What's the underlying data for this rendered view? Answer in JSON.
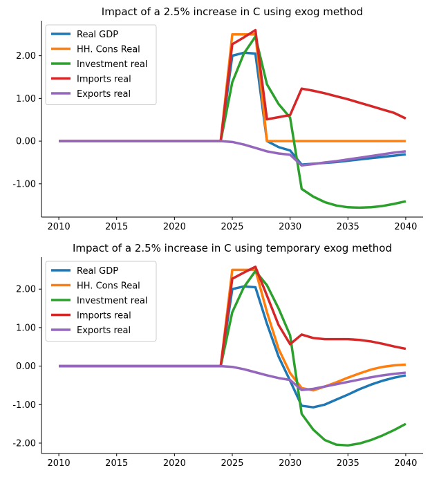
{
  "chart_data": [
    {
      "type": "line",
      "title": "Impact of a 2.5% increase in C using exog method",
      "xlabel": "",
      "ylabel": "",
      "xlim": [
        2008.5,
        2041.5
      ],
      "ylim": [
        -1.78,
        2.82
      ],
      "xticks": [
        2010,
        2015,
        2020,
        2025,
        2030,
        2035,
        2040
      ],
      "xtick_labels": [
        "2010",
        "2015",
        "2020",
        "2025",
        "2030",
        "2035",
        "2040"
      ],
      "yticks": [
        -1,
        0,
        1,
        2
      ],
      "ytick_labels": [
        "-1.00",
        "0.00",
        "1.00",
        "2.00"
      ],
      "legend_position": "upper-left",
      "grid": false,
      "x": [
        2010,
        2011,
        2012,
        2013,
        2014,
        2015,
        2016,
        2017,
        2018,
        2019,
        2020,
        2021,
        2022,
        2023,
        2024,
        2025,
        2026,
        2027,
        2028,
        2029,
        2030,
        2031,
        2032,
        2033,
        2034,
        2035,
        2036,
        2037,
        2038,
        2039,
        2040
      ],
      "series": [
        {
          "name": "Real GDP",
          "color": "#1f77b4",
          "values": [
            0,
            0,
            0,
            0,
            0,
            0,
            0,
            0,
            0,
            0,
            0,
            0,
            0,
            0,
            0,
            2.0,
            2.07,
            2.05,
            0.0,
            -0.14,
            -0.22,
            -0.55,
            -0.53,
            -0.51,
            -0.49,
            -0.46,
            -0.43,
            -0.4,
            -0.37,
            -0.34,
            -0.31
          ]
        },
        {
          "name": "HH. Cons Real",
          "color": "#ff7f0e",
          "values": [
            0,
            0,
            0,
            0,
            0,
            0,
            0,
            0,
            0,
            0,
            0,
            0,
            0,
            0,
            0,
            2.5,
            2.5,
            2.5,
            0,
            0,
            0,
            0,
            0,
            0,
            0,
            0,
            0,
            0,
            0,
            0,
            0
          ]
        },
        {
          "name": "Investment real",
          "color": "#2ca02c",
          "values": [
            0,
            0,
            0,
            0,
            0,
            0,
            0,
            0,
            0,
            0,
            0,
            0,
            0,
            0,
            0,
            1.38,
            2.05,
            2.45,
            1.33,
            0.87,
            0.55,
            -1.12,
            -1.3,
            -1.43,
            -1.51,
            -1.55,
            -1.56,
            -1.55,
            -1.52,
            -1.47,
            -1.41
          ]
        },
        {
          "name": "Imports real",
          "color": "#d62728",
          "values": [
            0,
            0,
            0,
            0,
            0,
            0,
            0,
            0,
            0,
            0,
            0,
            0,
            0,
            0,
            0,
            2.27,
            2.43,
            2.6,
            0.51,
            0.56,
            0.61,
            1.23,
            1.18,
            1.12,
            1.05,
            0.98,
            0.9,
            0.82,
            0.74,
            0.66,
            0.53
          ]
        },
        {
          "name": "Exports real",
          "color": "#9467bd",
          "values": [
            0,
            0,
            0,
            0,
            0,
            0,
            0,
            0,
            0,
            0,
            0,
            0,
            0,
            0,
            0,
            -0.02,
            -0.08,
            -0.16,
            -0.24,
            -0.29,
            -0.32,
            -0.57,
            -0.54,
            -0.5,
            -0.47,
            -0.43,
            -0.39,
            -0.35,
            -0.31,
            -0.27,
            -0.24
          ]
        }
      ]
    },
    {
      "type": "line",
      "title": "Impact of a 2.5% increase in C using temporary exog method",
      "xlabel": "",
      "ylabel": "",
      "xlim": [
        2008.5,
        2041.5
      ],
      "ylim": [
        -2.27,
        2.83
      ],
      "xticks": [
        2010,
        2015,
        2020,
        2025,
        2030,
        2035,
        2040
      ],
      "xtick_labels": [
        "2010",
        "2015",
        "2020",
        "2025",
        "2030",
        "2035",
        "2040"
      ],
      "yticks": [
        -2,
        -1,
        0,
        1,
        2
      ],
      "ytick_labels": [
        "-2.00",
        "-1.00",
        "0.00",
        "1.00",
        "2.00"
      ],
      "legend_position": "upper-left",
      "grid": false,
      "x": [
        2010,
        2011,
        2012,
        2013,
        2014,
        2015,
        2016,
        2017,
        2018,
        2019,
        2020,
        2021,
        2022,
        2023,
        2024,
        2025,
        2026,
        2027,
        2028,
        2029,
        2030,
        2031,
        2032,
        2033,
        2034,
        2035,
        2036,
        2037,
        2038,
        2039,
        2040
      ],
      "series": [
        {
          "name": "Real GDP",
          "color": "#1f77b4",
          "values": [
            0,
            0,
            0,
            0,
            0,
            0,
            0,
            0,
            0,
            0,
            0,
            0,
            0,
            0,
            0,
            2.0,
            2.07,
            2.05,
            1.1,
            0.25,
            -0.38,
            -1.03,
            -1.07,
            -1.0,
            -0.87,
            -0.74,
            -0.6,
            -0.48,
            -0.38,
            -0.3,
            -0.24
          ]
        },
        {
          "name": "HH. Cons Real",
          "color": "#ff7f0e",
          "values": [
            0,
            0,
            0,
            0,
            0,
            0,
            0,
            0,
            0,
            0,
            0,
            0,
            0,
            0,
            0,
            2.5,
            2.5,
            2.5,
            1.4,
            0.45,
            -0.18,
            -0.57,
            -0.63,
            -0.53,
            -0.42,
            -0.3,
            -0.19,
            -0.09,
            -0.02,
            0.02,
            0.04
          ]
        },
        {
          "name": "Investment real",
          "color": "#2ca02c",
          "values": [
            0,
            0,
            0,
            0,
            0,
            0,
            0,
            0,
            0,
            0,
            0,
            0,
            0,
            0,
            0,
            1.4,
            2.05,
            2.47,
            2.1,
            1.5,
            0.8,
            -1.24,
            -1.65,
            -1.92,
            -2.04,
            -2.06,
            -2.01,
            -1.92,
            -1.8,
            -1.66,
            -1.5
          ]
        },
        {
          "name": "Imports real",
          "color": "#d62728",
          "values": [
            0,
            0,
            0,
            0,
            0,
            0,
            0,
            0,
            0,
            0,
            0,
            0,
            0,
            0,
            0,
            2.27,
            2.43,
            2.58,
            1.83,
            1.07,
            0.57,
            0.82,
            0.73,
            0.7,
            0.7,
            0.7,
            0.68,
            0.64,
            0.58,
            0.51,
            0.45
          ]
        },
        {
          "name": "Exports real",
          "color": "#9467bd",
          "values": [
            0,
            0,
            0,
            0,
            0,
            0,
            0,
            0,
            0,
            0,
            0,
            0,
            0,
            0,
            0,
            -0.02,
            -0.08,
            -0.16,
            -0.24,
            -0.31,
            -0.36,
            -0.62,
            -0.59,
            -0.53,
            -0.47,
            -0.41,
            -0.35,
            -0.29,
            -0.24,
            -0.2,
            -0.17
          ]
        }
      ]
    }
  ]
}
